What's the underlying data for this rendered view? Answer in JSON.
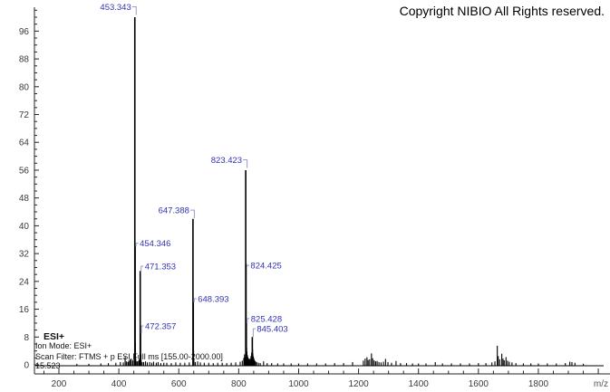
{
  "header": {
    "copyright": "Copyright NIBIO All Rights reserved."
  },
  "annotations": {
    "title": "ESI+",
    "ion_mode": "Ion Mode: ESI+",
    "scan_filter": "Scan Filter: FTMS + p ESI Full ms [155.00-2000.00]",
    "retention_time": "15.523"
  },
  "colors": {
    "peak": "#000000",
    "peak_label": "#3232b4",
    "leader": "#9a9ac8",
    "axis": "#222222",
    "tick_text": "#3a3a3a",
    "mz_text": "#555555"
  },
  "chart_data": {
    "type": "bar",
    "title": "",
    "xlabel": "m/z",
    "ylabel": "",
    "xlim": [
      119,
      2006
    ],
    "ylim": [
      0,
      104
    ],
    "x_tick_labels": [
      "200",
      "400",
      "600",
      "800",
      "1000",
      "1200",
      "1400",
      "1600",
      "1800"
    ],
    "x_tick_start": 200,
    "x_tick_step": 200,
    "x_tick_end": 2000,
    "x_minor_step": 50,
    "y_tick_start": 0,
    "y_tick_step": 8,
    "y_tick_end": 96,
    "y_minor_step": 2,
    "grid": false,
    "peaks": [
      {
        "mz": 453.343,
        "i": 100,
        "label": "453.343",
        "side": "left",
        "label_at": 103
      },
      {
        "mz": 454.346,
        "i": 34,
        "label": "454.346",
        "side": "right",
        "label_at": 35
      },
      {
        "mz": 471.353,
        "i": 27,
        "label": "471.353",
        "side": "right",
        "label_at": 28.4
      },
      {
        "mz": 472.357,
        "i": 9,
        "label": "472.357",
        "side": "right",
        "label_at": 11.2
      },
      {
        "mz": 647.388,
        "i": 42,
        "label": "647.388",
        "side": "left",
        "label_at": 44.5
      },
      {
        "mz": 648.393,
        "i": 18,
        "label": "648.393",
        "side": "right",
        "label_at": 19
      },
      {
        "mz": 823.423,
        "i": 56,
        "label": "823.423",
        "side": "left",
        "label_at": 59
      },
      {
        "mz": 824.425,
        "i": 29,
        "label": "824.425",
        "side": "right",
        "label_at": 28.6
      },
      {
        "mz": 825.428,
        "i": 12,
        "label": "825.428",
        "side": "right",
        "label_at": 13.3
      },
      {
        "mz": 845.403,
        "i": 8,
        "label": "845.403",
        "side": "right",
        "label_at": 10.4
      },
      {
        "mz": 260,
        "i": 0.3
      },
      {
        "mz": 300,
        "i": 0.3
      },
      {
        "mz": 340,
        "i": 0.4
      },
      {
        "mz": 365,
        "i": 0.5
      },
      {
        "mz": 390,
        "i": 0.6
      },
      {
        "mz": 405,
        "i": 0.8
      },
      {
        "mz": 415,
        "i": 0.7
      },
      {
        "mz": 421,
        "i": 2.3
      },
      {
        "mz": 425,
        "i": 1.0
      },
      {
        "mz": 430,
        "i": 0.8
      },
      {
        "mz": 433,
        "i": 1.2
      },
      {
        "mz": 437,
        "i": 1.5
      },
      {
        "mz": 441,
        "i": 1.8
      },
      {
        "mz": 446,
        "i": 1.2
      },
      {
        "mz": 448,
        "i": 1.5
      },
      {
        "mz": 455.35,
        "i": 6.5
      },
      {
        "mz": 456.35,
        "i": 2.0
      },
      {
        "mz": 458,
        "i": 1.0
      },
      {
        "mz": 462,
        "i": 1.0
      },
      {
        "mz": 466,
        "i": 1.2
      },
      {
        "mz": 468,
        "i": 1.5
      },
      {
        "mz": 473.36,
        "i": 3.0
      },
      {
        "mz": 474.36,
        "i": 1.4
      },
      {
        "mz": 478,
        "i": 0.8
      },
      {
        "mz": 483,
        "i": 0.8
      },
      {
        "mz": 489,
        "i": 1.0
      },
      {
        "mz": 495,
        "i": 0.7
      },
      {
        "mz": 503,
        "i": 0.8
      },
      {
        "mz": 510,
        "i": 0.6
      },
      {
        "mz": 516,
        "i": 0.9
      },
      {
        "mz": 525,
        "i": 0.6
      },
      {
        "mz": 531,
        "i": 0.8
      },
      {
        "mz": 540,
        "i": 0.5
      },
      {
        "mz": 550,
        "i": 0.6
      },
      {
        "mz": 560,
        "i": 0.6
      },
      {
        "mz": 575,
        "i": 0.5
      },
      {
        "mz": 590,
        "i": 0.7
      },
      {
        "mz": 605,
        "i": 0.6
      },
      {
        "mz": 620,
        "i": 0.6
      },
      {
        "mz": 635,
        "i": 0.7
      },
      {
        "mz": 649.4,
        "i": 4.2
      },
      {
        "mz": 650.4,
        "i": 1.5
      },
      {
        "mz": 655,
        "i": 0.8
      },
      {
        "mz": 663,
        "i": 1.0
      },
      {
        "mz": 672,
        "i": 0.7
      },
      {
        "mz": 685,
        "i": 0.6
      },
      {
        "mz": 700,
        "i": 0.6
      },
      {
        "mz": 715,
        "i": 0.5
      },
      {
        "mz": 730,
        "i": 0.6
      },
      {
        "mz": 745,
        "i": 0.6
      },
      {
        "mz": 760,
        "i": 0.5
      },
      {
        "mz": 775,
        "i": 0.6
      },
      {
        "mz": 790,
        "i": 0.7
      },
      {
        "mz": 805,
        "i": 0.9
      },
      {
        "mz": 812,
        "i": 1.2
      },
      {
        "mz": 817,
        "i": 2.0
      },
      {
        "mz": 819.4,
        "i": 3.0
      },
      {
        "mz": 821,
        "i": 2.2
      },
      {
        "mz": 826.43,
        "i": 5.0
      },
      {
        "mz": 827.43,
        "i": 3.8
      },
      {
        "mz": 829,
        "i": 2.8
      },
      {
        "mz": 831,
        "i": 2.2
      },
      {
        "mz": 833,
        "i": 1.8
      },
      {
        "mz": 835,
        "i": 1.5
      },
      {
        "mz": 838,
        "i": 1.8
      },
      {
        "mz": 841,
        "i": 2.5
      },
      {
        "mz": 843,
        "i": 3.5
      },
      {
        "mz": 846.4,
        "i": 4.5
      },
      {
        "mz": 847.4,
        "i": 3.2
      },
      {
        "mz": 849,
        "i": 2.4
      },
      {
        "mz": 851,
        "i": 1.8
      },
      {
        "mz": 853,
        "i": 1.3
      },
      {
        "mz": 856,
        "i": 1.0
      },
      {
        "mz": 860,
        "i": 0.8
      },
      {
        "mz": 866,
        "i": 0.6
      },
      {
        "mz": 872,
        "i": 0.5
      },
      {
        "mz": 883,
        "i": 1.0
      },
      {
        "mz": 895,
        "i": 0.5
      },
      {
        "mz": 910,
        "i": 0.5
      },
      {
        "mz": 930,
        "i": 0.4
      },
      {
        "mz": 950,
        "i": 0.4
      },
      {
        "mz": 975,
        "i": 0.4
      },
      {
        "mz": 1000,
        "i": 0.4
      },
      {
        "mz": 1030,
        "i": 0.4
      },
      {
        "mz": 1060,
        "i": 0.4
      },
      {
        "mz": 1090,
        "i": 0.4
      },
      {
        "mz": 1120,
        "i": 0.5
      },
      {
        "mz": 1150,
        "i": 0.5
      },
      {
        "mz": 1180,
        "i": 0.8
      },
      {
        "mz": 1216,
        "i": 1.2
      },
      {
        "mz": 1222,
        "i": 1.8
      },
      {
        "mz": 1228,
        "i": 2.2
      },
      {
        "mz": 1232,
        "i": 1.4
      },
      {
        "mz": 1237,
        "i": 1.6
      },
      {
        "mz": 1243,
        "i": 3.3
      },
      {
        "mz": 1247,
        "i": 1.9
      },
      {
        "mz": 1252,
        "i": 1.3
      },
      {
        "mz": 1257,
        "i": 1.0
      },
      {
        "mz": 1262,
        "i": 1.1
      },
      {
        "mz": 1268,
        "i": 0.8
      },
      {
        "mz": 1275,
        "i": 0.7
      },
      {
        "mz": 1283,
        "i": 0.9
      },
      {
        "mz": 1290,
        "i": 1.7
      },
      {
        "mz": 1298,
        "i": 0.8
      },
      {
        "mz": 1310,
        "i": 0.6
      },
      {
        "mz": 1325,
        "i": 1.1
      },
      {
        "mz": 1340,
        "i": 0.5
      },
      {
        "mz": 1360,
        "i": 0.5
      },
      {
        "mz": 1380,
        "i": 0.4
      },
      {
        "mz": 1400,
        "i": 0.4
      },
      {
        "mz": 1425,
        "i": 0.4
      },
      {
        "mz": 1456,
        "i": 0.8
      },
      {
        "mz": 1480,
        "i": 0.4
      },
      {
        "mz": 1510,
        "i": 0.4
      },
      {
        "mz": 1540,
        "i": 0.4
      },
      {
        "mz": 1570,
        "i": 0.4
      },
      {
        "mz": 1600,
        "i": 0.5
      },
      {
        "mz": 1625,
        "i": 0.5
      },
      {
        "mz": 1645,
        "i": 0.7
      },
      {
        "mz": 1655,
        "i": 1.0
      },
      {
        "mz": 1663,
        "i": 5.5
      },
      {
        "mz": 1666,
        "i": 2.5
      },
      {
        "mz": 1671,
        "i": 1.6
      },
      {
        "mz": 1678,
        "i": 3.2
      },
      {
        "mz": 1682,
        "i": 1.8
      },
      {
        "mz": 1686,
        "i": 1.3
      },
      {
        "mz": 1692,
        "i": 2.2
      },
      {
        "mz": 1697,
        "i": 1.2
      },
      {
        "mz": 1703,
        "i": 0.9
      },
      {
        "mz": 1712,
        "i": 0.7
      },
      {
        "mz": 1725,
        "i": 0.5
      },
      {
        "mz": 1750,
        "i": 0.4
      },
      {
        "mz": 1775,
        "i": 0.4
      },
      {
        "mz": 1800,
        "i": 0.4
      },
      {
        "mz": 1830,
        "i": 0.4
      },
      {
        "mz": 1860,
        "i": 0.4
      },
      {
        "mz": 1890,
        "i": 0.5
      },
      {
        "mz": 1905,
        "i": 0.9
      },
      {
        "mz": 1912,
        "i": 0.8
      },
      {
        "mz": 1922,
        "i": 0.6
      },
      {
        "mz": 1950,
        "i": 0.3
      }
    ]
  }
}
